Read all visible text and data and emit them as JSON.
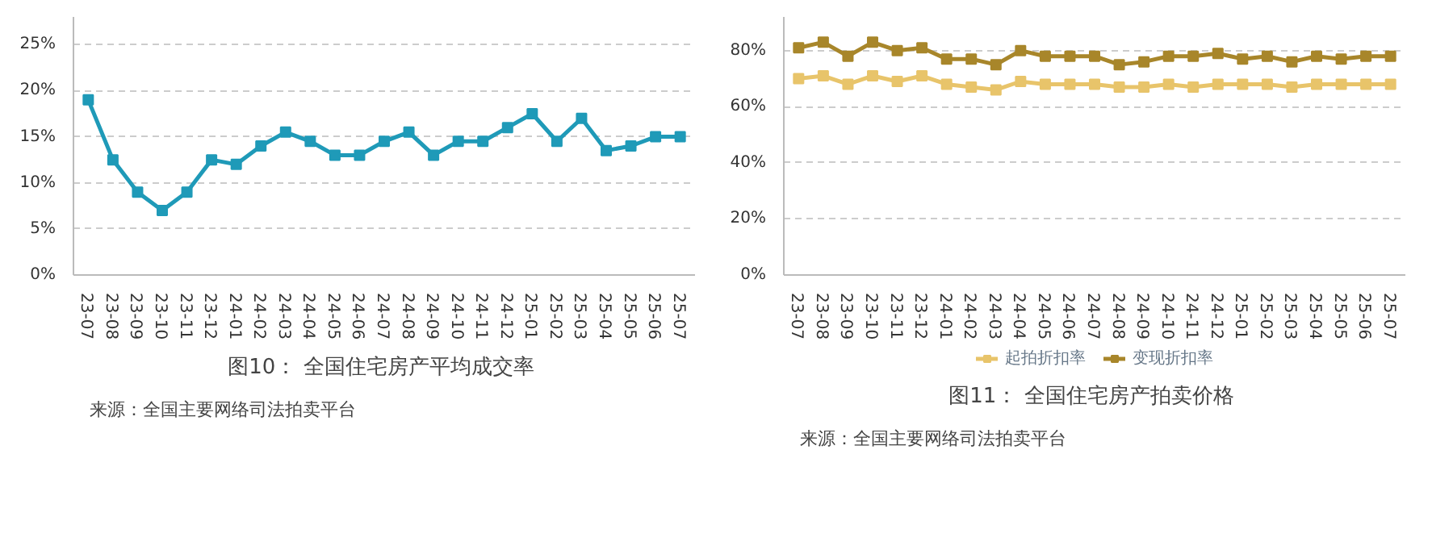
{
  "chart_data": [
    {
      "type": "line",
      "title": "图10：  全国住宅房产平均成交率",
      "annotations": [
        "来源：全国主要网络司法拍卖平台"
      ],
      "categories": [
        "23-07",
        "23-08",
        "23-09",
        "23-10",
        "23-11",
        "23-12",
        "24-01",
        "24-02",
        "24-03",
        "24-04",
        "24-05",
        "24-06",
        "24-07",
        "24-08",
        "24-09",
        "24-10",
        "24-11",
        "24-12",
        "25-01",
        "25-02",
        "25-03",
        "25-04",
        "25-05",
        "25-06",
        "25-07"
      ],
      "series": [
        {
          "color": "#1f9ab8",
          "values": [
            19,
            12.5,
            9,
            7,
            9,
            12.5,
            12,
            14,
            15.5,
            14.5,
            13,
            13,
            14.5,
            15.5,
            13,
            14.5,
            14.5,
            16,
            17.5,
            14.5,
            17,
            13.5,
            14,
            15,
            15
          ]
        }
      ],
      "ylim": [
        0,
        28
      ],
      "yticks": [
        {
          "value": 0,
          "label": "0%"
        },
        {
          "value": 5,
          "label": "5%"
        },
        {
          "value": 10,
          "label": "10%"
        },
        {
          "value": 15,
          "label": "15%"
        },
        {
          "value": 20,
          "label": "20%"
        },
        {
          "value": 25,
          "label": "25%"
        }
      ],
      "grid": "y",
      "marker": "square",
      "line_style": "solid",
      "legend": false
    },
    {
      "type": "line",
      "title": "图11：  全国住宅房产拍卖价格",
      "annotations": [
        "来源：全国主要网络司法拍卖平台"
      ],
      "categories": [
        "23-07",
        "23-08",
        "23-09",
        "23-10",
        "23-11",
        "23-12",
        "24-01",
        "24-02",
        "24-03",
        "24-04",
        "24-05",
        "24-06",
        "24-07",
        "24-08",
        "24-09",
        "24-10",
        "24-11",
        "24-12",
        "25-01",
        "25-02",
        "25-03",
        "25-04",
        "25-05",
        "25-06",
        "25-07"
      ],
      "series": [
        {
          "name": "起拍折扣率",
          "color": "#e8c46a",
          "values": [
            70,
            71,
            68,
            71,
            69,
            71,
            68,
            67,
            66,
            69,
            68,
            68,
            68,
            67,
            67,
            68,
            67,
            68,
            68,
            68,
            67,
            68,
            68,
            68,
            68
          ]
        },
        {
          "name": "变现折扣率",
          "color": "#a8862a",
          "values": [
            81,
            83,
            78,
            83,
            80,
            81,
            77,
            77,
            75,
            80,
            78,
            78,
            78,
            75,
            76,
            78,
            78,
            79,
            77,
            78,
            76,
            78,
            77,
            78,
            78
          ]
        }
      ],
      "ylim": [
        0,
        92
      ],
      "yticks": [
        {
          "value": 0,
          "label": "0%"
        },
        {
          "value": 20,
          "label": "20%"
        },
        {
          "value": 40,
          "label": "40%"
        },
        {
          "value": 60,
          "label": "60%"
        },
        {
          "value": 80,
          "label": "80%"
        }
      ],
      "grid": "y",
      "marker": "square",
      "line_style": "solid",
      "legend": "bottom"
    }
  ]
}
